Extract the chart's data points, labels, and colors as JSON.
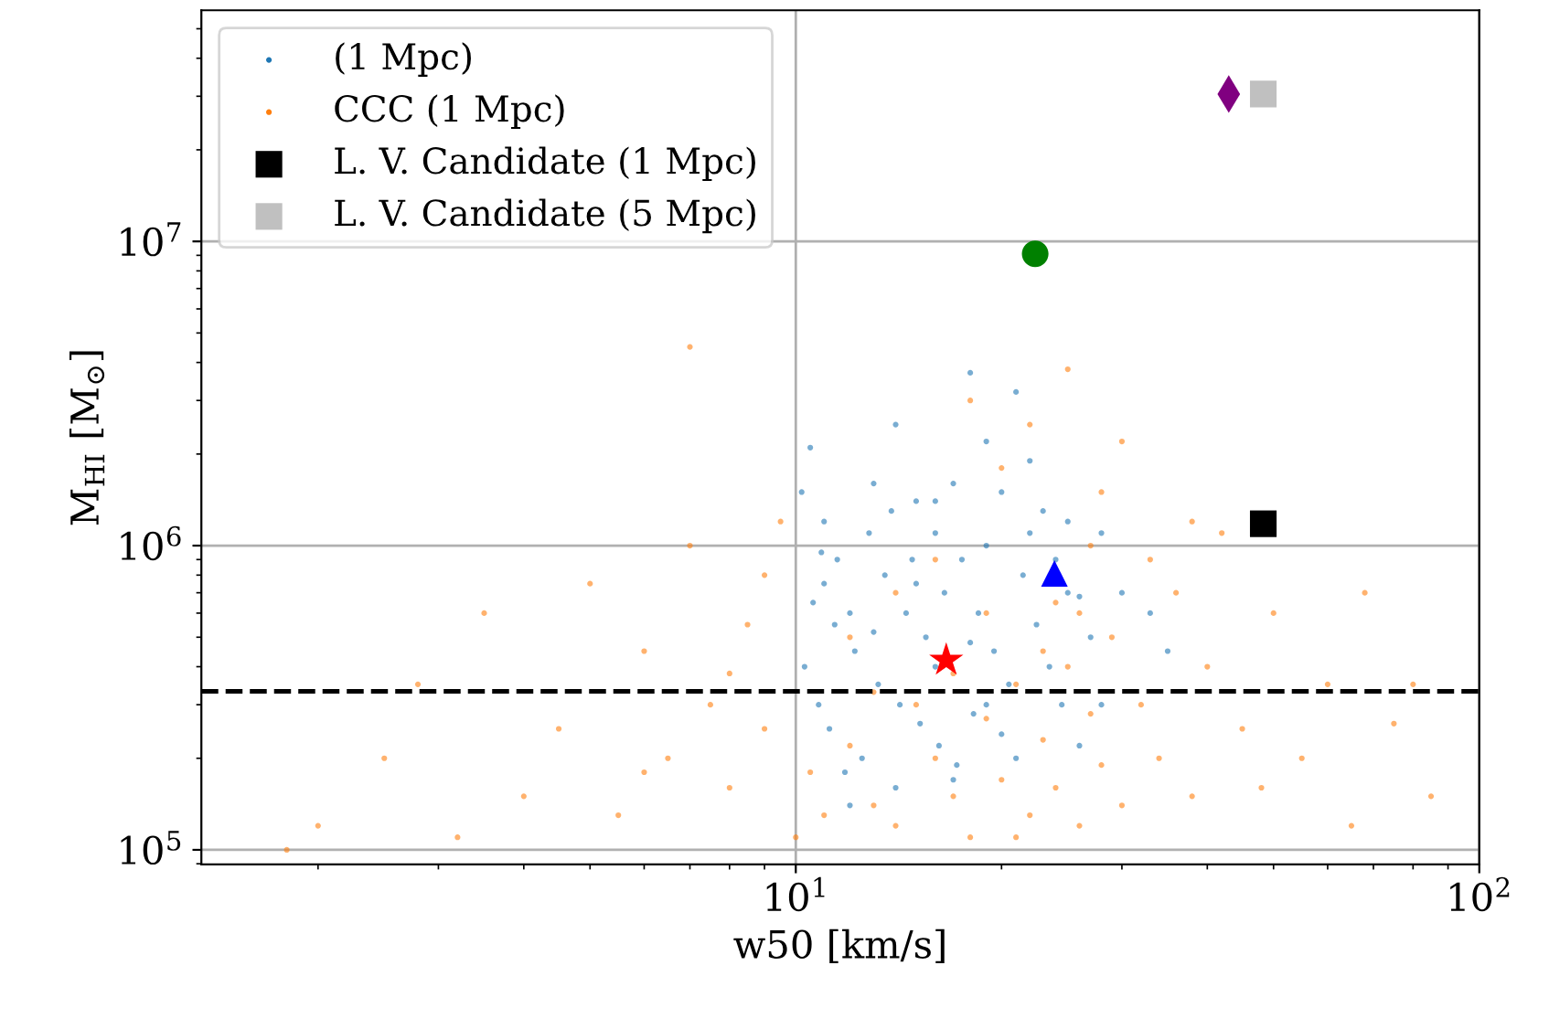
{
  "chart_data": {
    "type": "scatter",
    "xlabel": "w50 [km/s]",
    "ylabel": "M$_{HI}$ [M$_{⊙}$]",
    "log": "xy",
    "grid": true,
    "legend": "top left",
    "xlim": [
      1.35,
      100
    ],
    "xticks": [
      {
        "value": 10,
        "label": "10$^{1}$"
      },
      {
        "value": 100,
        "label": "10$^{2}$"
      }
    ],
    "ylim": [
      89600,
      57500000
    ],
    "yticks": [
      {
        "value": 100000,
        "label": "10$^{5}$"
      },
      {
        "value": 1000000,
        "label": "10$^{6}$"
      },
      {
        "value": 10000000,
        "label": "10$^{7}$"
      }
    ],
    "ref_lines": [
      {
        "axis": "y",
        "value": 332000,
        "color": "#000000",
        "line_style": "dashed"
      }
    ],
    "series": [
      {
        "name": "(1 Mpc)",
        "color": "#1f77b4",
        "marker": "circle",
        "x": [
          10.2,
          10.5,
          11,
          11.5,
          12,
          10.3,
          10.8,
          11.2,
          12.5,
          13,
          14,
          15,
          16,
          17,
          18,
          19,
          20,
          21,
          22,
          23,
          24,
          25,
          26,
          27,
          28,
          30,
          33,
          35,
          13.5,
          14.5,
          15.5,
          16.5,
          17.5,
          18.5,
          19.5,
          20.5,
          21.5,
          12.2,
          13.2,
          14.2,
          15.2,
          16.2,
          17.2,
          18.2,
          11.8,
          10.6,
          11.4,
          10.9,
          12.8,
          13.8,
          14.8,
          22.5,
          23.5,
          24.5,
          19,
          20,
          21,
          17,
          14,
          12,
          16,
          18,
          15,
          13,
          11,
          25,
          22,
          16,
          19,
          26,
          28
        ],
        "values": [
          1500000,
          2100000,
          1200000,
          900000,
          600000,
          400000,
          300000,
          250000,
          200000,
          1600000,
          2500000,
          1400000,
          1100000,
          1600000,
          3700000,
          2200000,
          1500000,
          3200000,
          1900000,
          1300000,
          900000,
          700000,
          680000,
          500000,
          1100000,
          700000,
          600000,
          450000,
          800000,
          600000,
          500000,
          700000,
          900000,
          600000,
          450000,
          350000,
          800000,
          450000,
          350000,
          300000,
          260000,
          220000,
          190000,
          280000,
          180000,
          650000,
          550000,
          950000,
          1100000,
          1300000,
          900000,
          550000,
          400000,
          300000,
          300000,
          240000,
          200000,
          170000,
          160000,
          140000,
          400000,
          480000,
          750000,
          520000,
          750000,
          1200000,
          1100000,
          1400000,
          1000000,
          220000,
          300000
        ]
      },
      {
        "name": "CCC (1 Mpc)",
        "color": "#ff7f0e",
        "marker": "circle",
        "x": [
          1.8,
          2,
          2.5,
          2.8,
          3.2,
          3.5,
          4,
          4.5,
          5,
          5.5,
          6,
          6.5,
          7,
          7,
          7.5,
          8,
          8.5,
          9,
          9.5,
          10,
          10.5,
          11,
          12,
          13,
          14,
          15,
          16,
          17,
          18,
          19,
          20,
          21,
          22,
          23,
          24,
          25,
          26,
          27,
          28,
          29,
          30,
          32,
          34,
          36,
          38,
          40,
          42,
          45,
          48,
          50,
          55,
          60,
          65,
          68,
          75,
          80,
          85,
          20,
          22,
          25,
          18,
          28,
          30,
          24,
          26,
          16,
          14,
          12,
          9,
          8,
          6,
          33,
          38,
          27,
          19,
          23,
          21,
          17,
          13
        ],
        "values": [
          100000,
          120000,
          200000,
          350000,
          110000,
          600000,
          150000,
          250000,
          750000,
          130000,
          450000,
          200000,
          1000000,
          4500000,
          300000,
          160000,
          550000,
          250000,
          1200000,
          110000,
          180000,
          130000,
          220000,
          140000,
          120000,
          300000,
          200000,
          150000,
          110000,
          270000,
          170000,
          350000,
          130000,
          230000,
          160000,
          400000,
          120000,
          280000,
          190000,
          500000,
          140000,
          300000,
          200000,
          700000,
          150000,
          400000,
          1100000,
          250000,
          160000,
          600000,
          200000,
          350000,
          120000,
          700000,
          260000,
          350000,
          150000,
          1800000,
          2500000,
          3800000,
          3000000,
          1500000,
          2200000,
          650000,
          600000,
          900000,
          700000,
          500000,
          800000,
          380000,
          180000,
          900000,
          1200000,
          1000000,
          600000,
          450000,
          110000,
          380000,
          330000
        ]
      },
      {
        "name": "L. V. Candidate (1 Mpc)",
        "color": "#000000",
        "marker": "square",
        "x": [
          48.3
        ],
        "values": [
          1180000
        ]
      },
      {
        "name": "L. V. Candidate (5 Mpc)",
        "color": "#c0c0c0",
        "marker": "square",
        "x": [
          48.3
        ],
        "values": [
          30500000
        ]
      },
      {
        "color": "#800080",
        "marker": "diamond",
        "x": [
          43
        ],
        "values": [
          30500000
        ]
      },
      {
        "color": "#008000",
        "marker": "circle",
        "x": [
          22.4
        ],
        "values": [
          9100000
        ]
      },
      {
        "color": "#0000ff",
        "marker": "triangle",
        "x": [
          23.9
        ],
        "values": [
          810000
        ]
      },
      {
        "color": "#ff0000",
        "marker": "star",
        "x": [
          16.6
        ],
        "values": [
          420000
        ]
      }
    ]
  }
}
